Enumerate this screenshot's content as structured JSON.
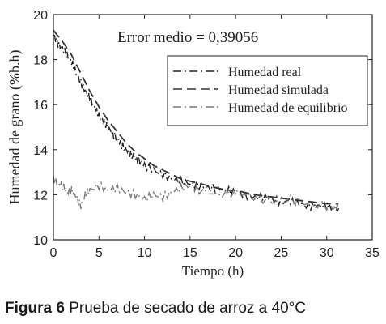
{
  "chart_data": {
    "type": "line",
    "ylabel": "Humedad de grano (%b.h)",
    "xlabel": "Tiempo (h)",
    "xlim": [
      0,
      35
    ],
    "ylim": [
      10,
      20
    ],
    "xticks": [
      0,
      5,
      10,
      15,
      20,
      25,
      30,
      35
    ],
    "yticks": [
      10,
      12,
      14,
      16,
      18,
      20
    ],
    "grid": false,
    "legend_position": "top-right",
    "annotation": "Error medio = 0,39056",
    "series": [
      {
        "name": "Humedad real",
        "dash": "dashdot",
        "color": "#222222",
        "x": [
          0,
          0.5,
          1,
          1.5,
          2,
          2.5,
          3,
          3.5,
          4,
          4.5,
          5,
          5.5,
          6,
          6.5,
          7,
          7.5,
          8,
          8.5,
          9,
          9.5,
          10,
          11,
          12,
          13,
          14,
          15,
          16,
          17,
          18,
          19,
          20,
          21,
          22,
          23,
          24,
          25,
          26,
          27,
          28,
          29,
          30,
          31,
          31.3
        ],
        "y": [
          19.1,
          18.7,
          18.5,
          18.2,
          17.9,
          17.4,
          17.0,
          16.6,
          16.3,
          15.9,
          15.5,
          15.3,
          15.0,
          14.7,
          14.5,
          14.2,
          14.0,
          13.8,
          13.6,
          13.5,
          13.3,
          13.1,
          12.9,
          12.7,
          12.6,
          12.5,
          12.4,
          12.3,
          12.3,
          12.2,
          12.1,
          12.0,
          11.9,
          11.9,
          11.8,
          11.7,
          11.7,
          11.6,
          11.5,
          11.5,
          11.5,
          11.4,
          11.4
        ]
      },
      {
        "name": "Humedad simulada",
        "dash": "dashed",
        "color": "#333333",
        "x": [
          0,
          1,
          2,
          3,
          4,
          5,
          6,
          7,
          8,
          9,
          10,
          11,
          12,
          13,
          14,
          15,
          16,
          17,
          18,
          19,
          20,
          22,
          24,
          26,
          28,
          30,
          31.3
        ],
        "y": [
          19.3,
          18.8,
          18.2,
          17.4,
          16.6,
          15.9,
          15.3,
          14.8,
          14.3,
          13.9,
          13.6,
          13.3,
          13.1,
          12.9,
          12.7,
          12.6,
          12.5,
          12.4,
          12.3,
          12.2,
          12.2,
          12.0,
          11.9,
          11.8,
          11.7,
          11.6,
          11.6
        ]
      },
      {
        "name": "Humedad de equilibrio",
        "dash": "dashdot",
        "color": "#7a7a7a",
        "x": [
          0,
          0.5,
          1,
          1.5,
          2,
          2.5,
          3,
          3.5,
          4,
          5,
          6,
          7,
          8,
          9,
          10,
          11,
          12,
          13,
          14,
          15,
          16,
          18,
          20,
          22,
          24,
          26,
          28,
          30,
          31.3
        ],
        "y": [
          12.7,
          12.5,
          12.4,
          12.1,
          12.2,
          11.9,
          11.5,
          12.0,
          12.2,
          12.4,
          12.2,
          12.3,
          12.1,
          12.0,
          11.8,
          12.0,
          11.9,
          12.1,
          12.3,
          12.4,
          12.2,
          12.0,
          12.1,
          11.9,
          11.7,
          11.8,
          11.6,
          11.5,
          11.4
        ]
      }
    ]
  },
  "caption": {
    "label": "Figura 6",
    "text": "Prueba de secado de arroz a 40°C"
  }
}
